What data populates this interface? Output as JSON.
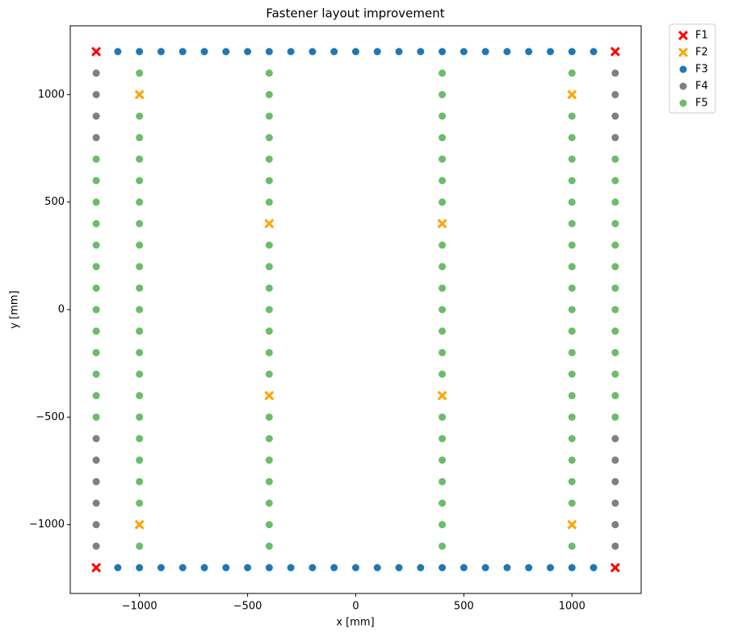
{
  "chart_data": {
    "type": "scatter",
    "title": "Fastener layout improvement",
    "x_label": "x [mm]",
    "y_label": "y [mm]",
    "xlim": [
      -1320,
      1320
    ],
    "ylim": [
      -1320,
      1320
    ],
    "xticks": [
      {
        "value": -1000,
        "label": "−1000"
      },
      {
        "value": -500,
        "label": "−500"
      },
      0,
      500,
      1000
    ],
    "yticks": [
      {
        "value": -1000,
        "label": "−1000"
      },
      {
        "value": -500,
        "label": "−500"
      },
      0,
      500,
      1000
    ],
    "grid": false,
    "legend": "outside upper right",
    "series": [
      {
        "name": "F1",
        "color": "#ff0000",
        "marker": "X",
        "x": [
          -1200,
          1200,
          -1200,
          1200
        ],
        "y": [
          1200,
          1200,
          -1200,
          -1200
        ]
      },
      {
        "name": "F2",
        "color": "#ffa500",
        "marker": "X",
        "x": [
          -1000,
          1000,
          -400,
          400,
          -400,
          400,
          -1000,
          1000
        ],
        "y": [
          1000,
          1000,
          400,
          400,
          -400,
          -400,
          -1000,
          -1000
        ]
      },
      {
        "name": "F3",
        "color": "#1f77b4",
        "marker": "o",
        "x": [
          -1100,
          -1000,
          -900,
          -800,
          -700,
          -600,
          -500,
          -400,
          -300,
          -200,
          -100,
          0,
          100,
          200,
          300,
          400,
          500,
          600,
          700,
          800,
          900,
          1000,
          1100,
          -1100,
          -1000,
          -900,
          -800,
          -700,
          -600,
          -500,
          -400,
          -300,
          -200,
          -100,
          0,
          100,
          200,
          300,
          400,
          500,
          600,
          700,
          800,
          900,
          1000,
          1100
        ],
        "y": [
          1200,
          1200,
          1200,
          1200,
          1200,
          1200,
          1200,
          1200,
          1200,
          1200,
          1200,
          1200,
          1200,
          1200,
          1200,
          1200,
          1200,
          1200,
          1200,
          1200,
          1200,
          1200,
          1200,
          -1200,
          -1200,
          -1200,
          -1200,
          -1200,
          -1200,
          -1200,
          -1200,
          -1200,
          -1200,
          -1200,
          -1200,
          -1200,
          -1200,
          -1200,
          -1200,
          -1200,
          -1200,
          -1200,
          -1200,
          -1200,
          -1200,
          -1200
        ]
      },
      {
        "name": "F4",
        "color": "#808080",
        "marker": "o",
        "x": [
          -1200,
          -1200,
          -1200,
          -1200,
          -1200,
          -1200,
          -1200,
          -1200,
          -1200,
          -1200,
          1200,
          1200,
          1200,
          1200,
          1200,
          1200,
          1200,
          1200,
          1200,
          1200
        ],
        "y": [
          1100,
          1000,
          900,
          800,
          -600,
          -700,
          -800,
          -900,
          -1000,
          -1100,
          1100,
          1000,
          900,
          800,
          -600,
          -700,
          -800,
          -900,
          -1000,
          -1100
        ]
      },
      {
        "name": "F5",
        "color": "#2ca02c",
        "marker": "o",
        "alpha": 0.7,
        "x": [
          -1200,
          -1200,
          -1200,
          -1200,
          -1200,
          -1200,
          -1200,
          -1200,
          -1200,
          -1200,
          -1200,
          -1200,
          -1200,
          1200,
          1200,
          1200,
          1200,
          1200,
          1200,
          1200,
          1200,
          1200,
          1200,
          1200,
          1200,
          1200,
          -1000,
          -1000,
          -1000,
          -1000,
          -1000,
          -1000,
          -1000,
          -1000,
          -1000,
          -1000,
          -1000,
          -1000,
          -1000,
          -1000,
          -1000,
          -1000,
          -1000,
          -1000,
          -1000,
          -1000,
          -1000,
          1000,
          1000,
          1000,
          1000,
          1000,
          1000,
          1000,
          1000,
          1000,
          1000,
          1000,
          1000,
          1000,
          1000,
          1000,
          1000,
          1000,
          1000,
          1000,
          1000,
          1000,
          -400,
          -400,
          -400,
          -400,
          -400,
          -400,
          -400,
          -400,
          -400,
          -400,
          -400,
          -400,
          -400,
          -400,
          -400,
          -400,
          -400,
          -400,
          -400,
          -400,
          -400,
          400,
          400,
          400,
          400,
          400,
          400,
          400,
          400,
          400,
          400,
          400,
          400,
          400,
          400,
          400,
          400,
          400,
          400,
          400,
          400,
          400
        ],
        "y": [
          700,
          600,
          500,
          400,
          300,
          200,
          100,
          0,
          -100,
          -200,
          -300,
          -400,
          -500,
          700,
          600,
          500,
          400,
          300,
          200,
          100,
          0,
          -100,
          -200,
          -300,
          -400,
          -500,
          1100,
          900,
          800,
          700,
          600,
          500,
          400,
          300,
          200,
          100,
          0,
          -100,
          -200,
          -300,
          -400,
          -500,
          -600,
          -700,
          -800,
          -900,
          -1100,
          1100,
          900,
          800,
          700,
          600,
          500,
          400,
          300,
          200,
          100,
          0,
          -100,
          -200,
          -300,
          -400,
          -500,
          -600,
          -700,
          -800,
          -900,
          -1100,
          1100,
          1000,
          900,
          800,
          700,
          600,
          500,
          300,
          200,
          100,
          0,
          -100,
          -200,
          -300,
          -500,
          -600,
          -700,
          -800,
          -900,
          -1000,
          -1100,
          1100,
          1000,
          900,
          800,
          700,
          600,
          500,
          300,
          200,
          100,
          0,
          -100,
          -200,
          -300,
          -500,
          -600,
          -700,
          -800,
          -900,
          -1000,
          -1100
        ]
      }
    ]
  }
}
